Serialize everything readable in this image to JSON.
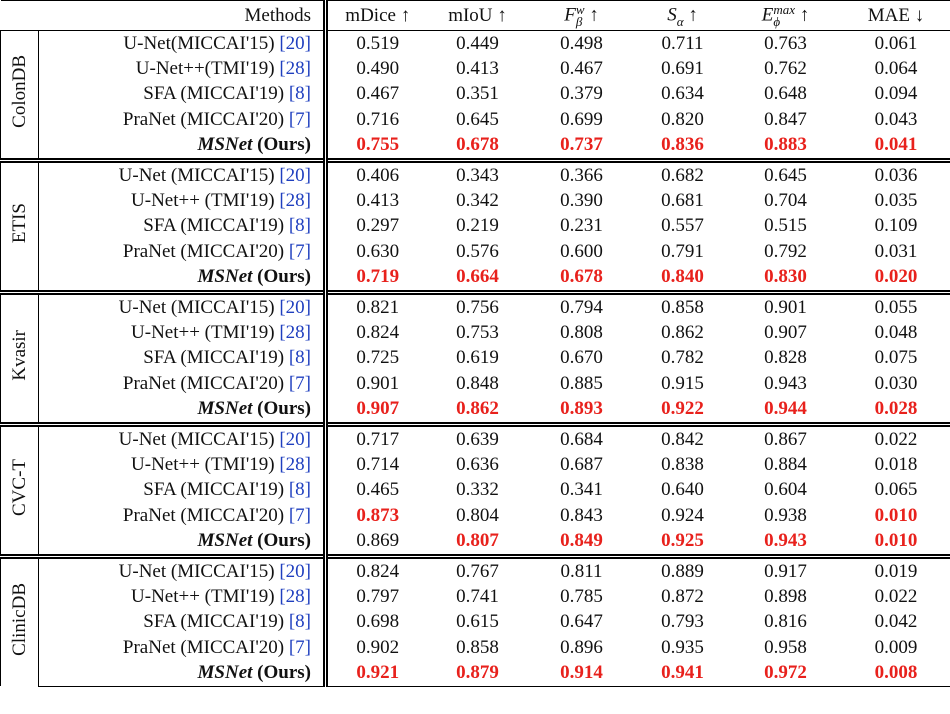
{
  "table": {
    "headers": [
      {
        "text": "Methods"
      },
      {
        "text": "mDice ↑"
      },
      {
        "text": "mIoU ↑"
      },
      {
        "base": "F",
        "sub": "β",
        "sup": "w",
        "suffix": "↑"
      },
      {
        "base": "S",
        "sub": "α",
        "suffix": "↑"
      },
      {
        "base": "E",
        "sub": "ϕ",
        "sup": "max",
        "suffix": "↑"
      },
      {
        "text": "MAE ↓"
      }
    ],
    "highlight_color": "#e8211c",
    "groups": [
      {
        "name": "ColonDB",
        "rows": [
          {
            "method": "U-Net(MICCAI'15)",
            "ref": "[20]",
            "values": [
              "0.519",
              "0.449",
              "0.498",
              "0.711",
              "0.763",
              "0.061"
            ],
            "highlight": []
          },
          {
            "method": "U-Net++(TMI'19)",
            "ref": "[28]",
            "values": [
              "0.490",
              "0.413",
              "0.467",
              "0.691",
              "0.762",
              "0.064"
            ],
            "highlight": []
          },
          {
            "method": "SFA (MICCAI'19)",
            "ref": "[8]",
            "values": [
              "0.467",
              "0.351",
              "0.379",
              "0.634",
              "0.648",
              "0.094"
            ],
            "highlight": []
          },
          {
            "method": "PraNet (MICCAI'20)",
            "ref": "[7]",
            "values": [
              "0.716",
              "0.645",
              "0.699",
              "0.820",
              "0.847",
              "0.043"
            ],
            "highlight": []
          },
          {
            "method": "MSNet",
            "suffix": "(Ours)",
            "values": [
              "0.755",
              "0.678",
              "0.737",
              "0.836",
              "0.883",
              "0.041"
            ],
            "highlight": [
              0,
              1,
              2,
              3,
              4,
              5
            ]
          }
        ]
      },
      {
        "name": "ETIS",
        "rows": [
          {
            "method": "U-Net (MICCAI'15)",
            "ref": "[20]",
            "values": [
              "0.406",
              "0.343",
              "0.366",
              "0.682",
              "0.645",
              "0.036"
            ],
            "highlight": []
          },
          {
            "method": "U-Net++ (TMI'19)",
            "ref": "[28]",
            "values": [
              "0.413",
              "0.342",
              "0.390",
              "0.681",
              "0.704",
              "0.035"
            ],
            "highlight": []
          },
          {
            "method": "SFA (MICCAI'19)",
            "ref": "[8]",
            "values": [
              "0.297",
              "0.219",
              "0.231",
              "0.557",
              "0.515",
              "0.109"
            ],
            "highlight": []
          },
          {
            "method": "PraNet (MICCAI'20)",
            "ref": "[7]",
            "values": [
              "0.630",
              "0.576",
              "0.600",
              "0.791",
              "0.792",
              "0.031"
            ],
            "highlight": []
          },
          {
            "method": "MSNet",
            "suffix": "(Ours)",
            "values": [
              "0.719",
              "0.664",
              "0.678",
              "0.840",
              "0.830",
              "0.020"
            ],
            "highlight": [
              0,
              1,
              2,
              3,
              4,
              5
            ]
          }
        ]
      },
      {
        "name": "Kvasir",
        "rows": [
          {
            "method": "U-Net (MICCAI'15)",
            "ref": "[20]",
            "values": [
              "0.821",
              "0.756",
              "0.794",
              "0.858",
              "0.901",
              "0.055"
            ],
            "highlight": []
          },
          {
            "method": "U-Net++ (TMI'19)",
            "ref": "[28]",
            "values": [
              "0.824",
              "0.753",
              "0.808",
              "0.862",
              "0.907",
              "0.048"
            ],
            "highlight": []
          },
          {
            "method": "SFA (MICCAI'19)",
            "ref": "[8]",
            "values": [
              "0.725",
              "0.619",
              "0.670",
              "0.782",
              "0.828",
              "0.075"
            ],
            "highlight": []
          },
          {
            "method": "PraNet (MICCAI'20)",
            "ref": "[7]",
            "values": [
              "0.901",
              "0.848",
              "0.885",
              "0.915",
              "0.943",
              "0.030"
            ],
            "highlight": []
          },
          {
            "method": "MSNet",
            "suffix": "(Ours)",
            "values": [
              "0.907",
              "0.862",
              "0.893",
              "0.922",
              "0.944",
              "0.028"
            ],
            "highlight": [
              0,
              1,
              2,
              3,
              4,
              5
            ]
          }
        ]
      },
      {
        "name": "CVC-T",
        "rows": [
          {
            "method": "U-Net (MICCAI'15)",
            "ref": "[20]",
            "values": [
              "0.717",
              "0.639",
              "0.684",
              "0.842",
              "0.867",
              "0.022"
            ],
            "highlight": []
          },
          {
            "method": "U-Net++ (TMI'19)",
            "ref": "[28]",
            "values": [
              "0.714",
              "0.636",
              "0.687",
              "0.838",
              "0.884",
              "0.018"
            ],
            "highlight": []
          },
          {
            "method": "SFA (MICCAI'19)",
            "ref": "[8]",
            "values": [
              "0.465",
              "0.332",
              "0.341",
              "0.640",
              "0.604",
              "0.065"
            ],
            "highlight": []
          },
          {
            "method": "PraNet (MICCAI'20)",
            "ref": "[7]",
            "values": [
              "0.873",
              "0.804",
              "0.843",
              "0.924",
              "0.938",
              "0.010"
            ],
            "highlight": [
              0,
              5
            ]
          },
          {
            "method": "MSNet",
            "suffix": "(Ours)",
            "values": [
              "0.869",
              "0.807",
              "0.849",
              "0.925",
              "0.943",
              "0.010"
            ],
            "highlight": [
              1,
              2,
              3,
              4,
              5
            ]
          }
        ]
      },
      {
        "name": "ClinicDB",
        "rows": [
          {
            "method": "U-Net (MICCAI'15)",
            "ref": "[20]",
            "values": [
              "0.824",
              "0.767",
              "0.811",
              "0.889",
              "0.917",
              "0.019"
            ],
            "highlight": []
          },
          {
            "method": "U-Net++ (TMI'19)",
            "ref": "[28]",
            "values": [
              "0.797",
              "0.741",
              "0.785",
              "0.872",
              "0.898",
              "0.022"
            ],
            "highlight": []
          },
          {
            "method": "SFA (MICCAI'19)",
            "ref": "[8]",
            "values": [
              "0.698",
              "0.615",
              "0.647",
              "0.793",
              "0.816",
              "0.042"
            ],
            "highlight": []
          },
          {
            "method": "PraNet (MICCAI'20)",
            "ref": "[7]",
            "values": [
              "0.902",
              "0.858",
              "0.896",
              "0.935",
              "0.958",
              "0.009"
            ],
            "highlight": []
          },
          {
            "method": "MSNet",
            "suffix": "(Ours)",
            "values": [
              "0.921",
              "0.879",
              "0.914",
              "0.941",
              "0.972",
              "0.008"
            ],
            "highlight": [
              0,
              1,
              2,
              3,
              4,
              5
            ]
          }
        ]
      }
    ]
  }
}
